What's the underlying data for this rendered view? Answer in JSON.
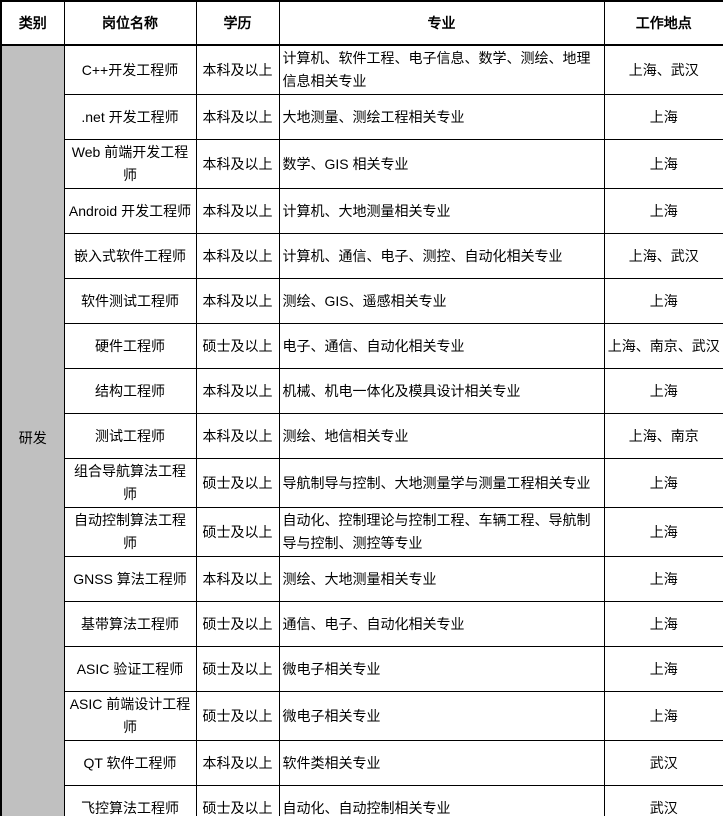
{
  "table": {
    "headers": [
      "类别",
      "岗位名称",
      "学历",
      "专业",
      "工作地点"
    ],
    "category": "研发",
    "rows": [
      {
        "position": "C++开发工程师",
        "education": "本科及以上",
        "major": "计算机、软件工程、电子信息、数学、测绘、地理信息相关专业",
        "location": "上海、武汉"
      },
      {
        "position": ".net 开发工程师",
        "education": "本科及以上",
        "major": "大地测量、测绘工程相关专业",
        "location": "上海"
      },
      {
        "position": "Web 前端开发工程师",
        "education": "本科及以上",
        "major": "数学、GIS 相关专业",
        "location": "上海"
      },
      {
        "position": "Android 开发工程师",
        "education": "本科及以上",
        "major": "计算机、大地测量相关专业",
        "location": "上海"
      },
      {
        "position": "嵌入式软件工程师",
        "education": "本科及以上",
        "major": "计算机、通信、电子、测控、自动化相关专业",
        "location": "上海、武汉"
      },
      {
        "position": "软件测试工程师",
        "education": "本科及以上",
        "major": "测绘、GIS、遥感相关专业",
        "location": "上海"
      },
      {
        "position": "硬件工程师",
        "education": "硕士及以上",
        "major": "电子、通信、自动化相关专业",
        "location": "上海、南京、武汉"
      },
      {
        "position": "结构工程师",
        "education": "本科及以上",
        "major": "机械、机电一体化及模具设计相关专业",
        "location": "上海"
      },
      {
        "position": "测试工程师",
        "education": "本科及以上",
        "major": "测绘、地信相关专业",
        "location": "上海、南京"
      },
      {
        "position": "组合导航算法工程师",
        "education": "硕士及以上",
        "major": "导航制导与控制、大地测量学与测量工程相关专业",
        "location": "上海"
      },
      {
        "position": "自动控制算法工程师",
        "education": "硕士及以上",
        "major": "自动化、控制理论与控制工程、车辆工程、导航制导与控制、测控等专业",
        "location": "上海"
      },
      {
        "position": "GNSS 算法工程师",
        "education": "本科及以上",
        "major": "测绘、大地测量相关专业",
        "location": "上海"
      },
      {
        "position": "基带算法工程师",
        "education": "硕士及以上",
        "major": "通信、电子、自动化相关专业",
        "location": "上海"
      },
      {
        "position": "ASIC 验证工程师",
        "education": "硕士及以上",
        "major": "微电子相关专业",
        "location": "上海"
      },
      {
        "position": "ASIC 前端设计工程师",
        "education": "硕士及以上",
        "major": "微电子相关专业",
        "location": "上海"
      },
      {
        "position": "QT 软件工程师",
        "education": "本科及以上",
        "major": "软件类相关专业",
        "location": "武汉"
      },
      {
        "position": "飞控算法工程师",
        "education": "硕士及以上",
        "major": "自动化、自动控制相关专业",
        "location": "武汉"
      }
    ]
  },
  "colors": {
    "category_cell_bg": "#c0c0c0",
    "border": "#000000",
    "text": "#000000",
    "background": "#ffffff"
  }
}
